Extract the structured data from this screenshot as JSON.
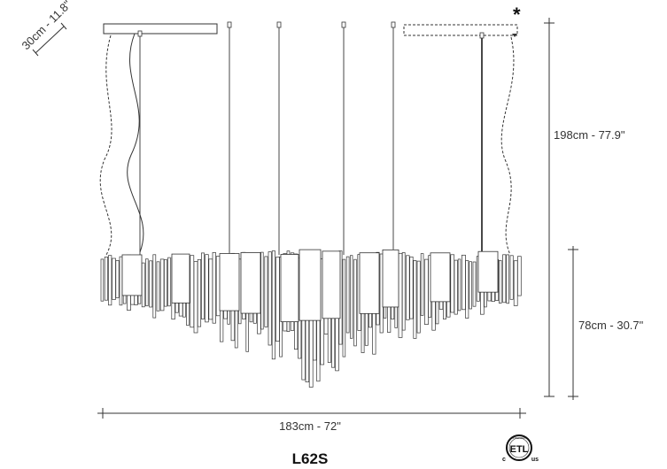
{
  "dimensions": {
    "depth": "30cm - 11.8\"",
    "height_total": "198cm - 77.9\"",
    "height_body": "78cm - 30.7\"",
    "width": "183cm - 72\""
  },
  "asterisk": "*",
  "model": "L62S",
  "certification": {
    "mark": "ETL",
    "left": "c",
    "right": "us",
    "ring": "INTERTEK"
  }
}
